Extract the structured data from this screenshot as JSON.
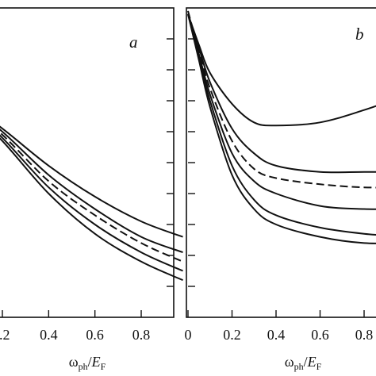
{
  "chart_data": [
    {
      "panel": "a",
      "type": "line",
      "xlabel": {
        "base": "ω",
        "sub": "ph",
        "slash": "/",
        "var": "E",
        "var_sub": "F"
      },
      "xlim": [
        0.0,
        1.0
      ],
      "xticks": [
        0.2,
        0.4,
        0.6,
        0.8
      ],
      "xtick_labels": [
        ".2",
        "0.4",
        "0.6",
        "0.8"
      ],
      "ylim": [
        0,
        1
      ],
      "yticks": [
        0.1,
        0.2,
        0.3,
        0.4,
        0.5,
        0.6,
        0.7,
        0.8,
        0.9
      ],
      "series": [
        {
          "style": "solid",
          "x": [
            0.0,
            0.2,
            0.4,
            0.6,
            0.8,
            0.98
          ],
          "y": [
            0.72,
            0.61,
            0.49,
            0.39,
            0.31,
            0.26
          ]
        },
        {
          "style": "solid",
          "x": [
            0.0,
            0.2,
            0.4,
            0.6,
            0.8,
            0.98
          ],
          "y": [
            0.72,
            0.6,
            0.46,
            0.35,
            0.26,
            0.21
          ]
        },
        {
          "style": "dashed",
          "x": [
            0.0,
            0.2,
            0.4,
            0.6,
            0.8,
            0.98
          ],
          "y": [
            0.72,
            0.59,
            0.44,
            0.33,
            0.24,
            0.18
          ]
        },
        {
          "style": "solid",
          "x": [
            0.0,
            0.2,
            0.4,
            0.6,
            0.8,
            0.98
          ],
          "y": [
            0.72,
            0.58,
            0.42,
            0.3,
            0.21,
            0.15
          ]
        },
        {
          "style": "solid",
          "x": [
            0.0,
            0.2,
            0.4,
            0.6,
            0.8,
            0.98
          ],
          "y": [
            0.72,
            0.57,
            0.4,
            0.27,
            0.18,
            0.12
          ]
        }
      ]
    },
    {
      "panel": "b",
      "type": "line",
      "xlabel": {
        "base": "ω",
        "sub": "ph",
        "slash": "/",
        "var": "E",
        "var_sub": "F"
      },
      "xlim": [
        0.0,
        1.0
      ],
      "xticks": [
        0.0,
        0.2,
        0.4,
        0.6,
        0.8
      ],
      "xtick_labels": [
        "0",
        "0.2",
        "0.4",
        "0.6",
        "0.8"
      ],
      "ylim": [
        0,
        1
      ],
      "yticks": [
        0.1,
        0.2,
        0.3,
        0.4,
        0.5,
        0.6,
        0.7,
        0.8,
        0.9
      ],
      "series": [
        {
          "style": "solid",
          "x": [
            0.0,
            0.05,
            0.1,
            0.2,
            0.3,
            0.4,
            0.6,
            0.8,
            1.0
          ],
          "y": [
            0.98,
            0.88,
            0.79,
            0.69,
            0.63,
            0.62,
            0.63,
            0.67,
            0.72
          ]
        },
        {
          "style": "solid",
          "x": [
            0.0,
            0.05,
            0.1,
            0.2,
            0.3,
            0.4,
            0.6,
            0.8,
            1.0
          ],
          "y": [
            0.98,
            0.87,
            0.76,
            0.61,
            0.53,
            0.49,
            0.47,
            0.47,
            0.47
          ]
        },
        {
          "style": "dashed",
          "x": [
            0.0,
            0.05,
            0.1,
            0.2,
            0.3,
            0.4,
            0.6,
            0.8,
            1.0
          ],
          "y": [
            0.99,
            0.86,
            0.74,
            0.57,
            0.48,
            0.45,
            0.43,
            0.42,
            0.42
          ]
        },
        {
          "style": "solid",
          "x": [
            0.0,
            0.05,
            0.1,
            0.2,
            0.3,
            0.4,
            0.6,
            0.8,
            1.0
          ],
          "y": [
            0.98,
            0.85,
            0.72,
            0.53,
            0.44,
            0.4,
            0.36,
            0.35,
            0.35
          ]
        },
        {
          "style": "solid",
          "x": [
            0.0,
            0.05,
            0.1,
            0.2,
            0.3,
            0.4,
            0.6,
            0.8,
            1.0
          ],
          "y": [
            0.98,
            0.84,
            0.7,
            0.49,
            0.38,
            0.33,
            0.29,
            0.27,
            0.26
          ]
        },
        {
          "style": "solid",
          "x": [
            0.0,
            0.05,
            0.1,
            0.2,
            0.3,
            0.4,
            0.6,
            0.8,
            1.0
          ],
          "y": [
            0.98,
            0.83,
            0.68,
            0.46,
            0.35,
            0.3,
            0.26,
            0.24,
            0.24
          ]
        }
      ]
    }
  ]
}
